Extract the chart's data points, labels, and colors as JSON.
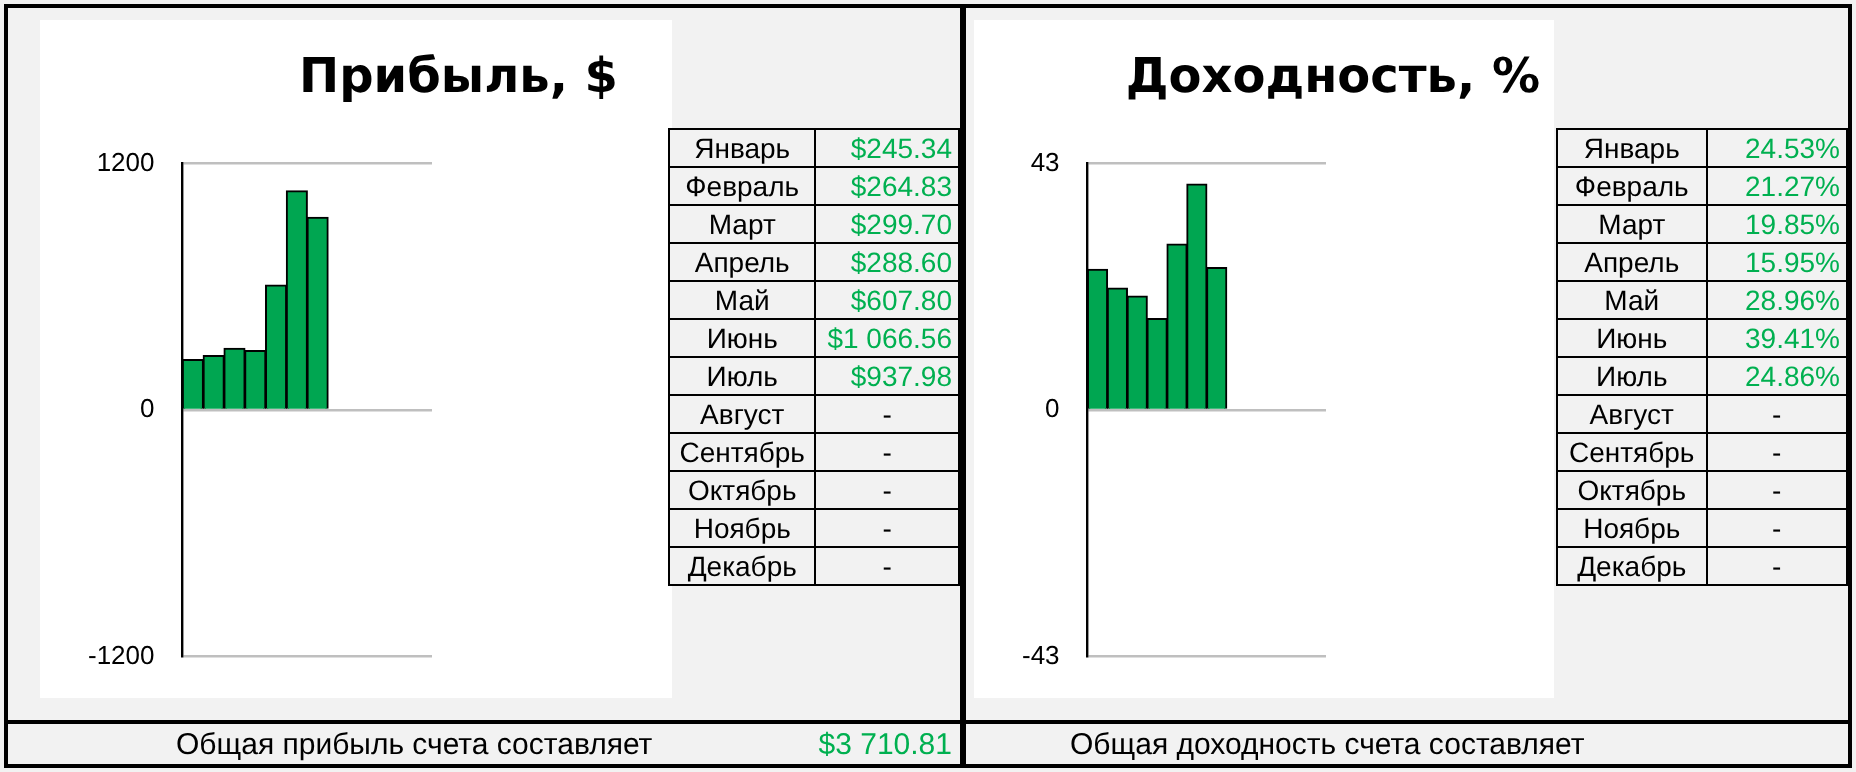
{
  "chart_data": [
    {
      "type": "bar",
      "title": "Прибыль, $",
      "categories": [
        null,
        null,
        null,
        null,
        null,
        null,
        null,
        null,
        null,
        null,
        null,
        null
      ],
      "values": [
        245.34,
        264.83,
        299.7,
        288.6,
        607.8,
        1066.56,
        937.98,
        null,
        null,
        null,
        null,
        null
      ],
      "color": "#00a651",
      "ylim": [
        -1200,
        1200
      ],
      "yticks": [
        -1200,
        0,
        1200
      ],
      "grid": "y",
      "tick_labels": "y",
      "annotations": [
        "Общая прибыль счета составляет",
        "$3 710.81"
      ]
    },
    {
      "type": "other",
      "categories": [
        "Январь",
        "Февраль",
        "Март",
        "Апрель",
        "Май",
        "Июнь",
        "Июль",
        "Август",
        "Сентябрь",
        "Октябрь",
        "Ноябрь",
        "Декабрь"
      ],
      "values": [
        245.34,
        264.83,
        299.7,
        288.6,
        607.8,
        1066.56,
        937.98,
        null,
        null,
        null,
        null,
        null
      ],
      "value_labels": [
        "$245.34",
        "$264.83",
        "$299.70",
        "$288.60",
        "$607.80",
        "$1 066.56",
        "$937.98",
        "-",
        "-",
        "-",
        "-",
        "-"
      ]
    },
    {
      "type": "bar",
      "title": "Доходность, %",
      "categories": [
        null,
        null,
        null,
        null,
        null,
        null,
        null,
        null,
        null,
        null,
        null,
        null
      ],
      "values": [
        24.53,
        21.27,
        19.85,
        15.95,
        28.96,
        39.41,
        24.86,
        null,
        null,
        null,
        null,
        null
      ],
      "color": "#00a651",
      "ylim": [
        -43,
        43
      ],
      "yticks": [
        -43,
        0,
        43
      ],
      "grid": "y",
      "tick_labels": "y",
      "annotations": [
        "Общая доходность счета составляет"
      ]
    },
    {
      "type": "other",
      "categories": [
        "Январь",
        "Февраль",
        "Март",
        "Апрель",
        "Май",
        "Июнь",
        "Июль",
        "Август",
        "Сентябрь",
        "Октябрь",
        "Ноябрь",
        "Декабрь"
      ],
      "values": [
        24.53,
        21.27,
        19.85,
        15.95,
        28.96,
        39.41,
        24.86,
        null,
        null,
        null,
        null,
        null
      ],
      "value_labels": [
        "24.53%",
        "21.27%",
        "19.85%",
        "15.95%",
        "28.96%",
        "39.41%",
        "24.86%",
        "-",
        "-",
        "-",
        "-",
        "-"
      ]
    }
  ]
}
